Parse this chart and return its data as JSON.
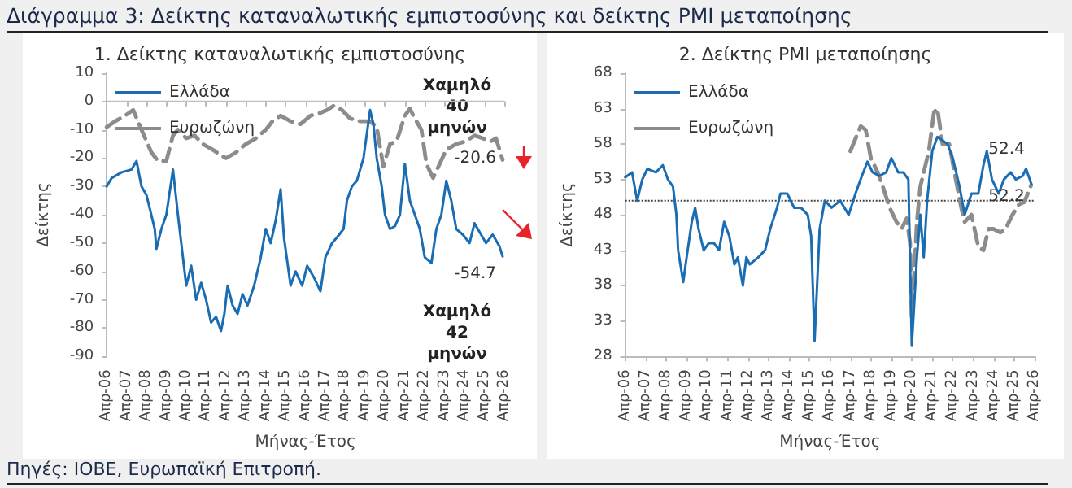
{
  "chart_data": [
    {
      "type": "line",
      "title": "1. Δείκτης καταναλωτικής εμπιστοσύνης",
      "xlabel": "Μήνας-Έτος",
      "ylabel": "Δείκτης",
      "legend": "top left",
      "marker": "none",
      "grid": false,
      "annotations": [
        "Διάγραμμα 3: Δείκτης καταναλωτικής εμπιστοσύνης και δείκτης PMI μεταποίησης",
        "Πηγές: ΙΟΒΕ, Ευρωπαϊκή Επιτροπή.",
        {
          "text": "-20.6",
          "x": "2026-03",
          "y": -20.6
        },
        {
          "text": "-54.7",
          "x": "2026-03",
          "y": -54.7
        },
        "Χαμηλό 40 μηνών",
        "Χαμηλό 42 μηνών"
      ],
      "xlim": [
        "2006-04",
        "2026-04"
      ],
      "xticks": [
        {
          "value": "2006-04",
          "label": "Απρ-06"
        },
        {
          "value": "2007-04",
          "label": "Απρ-07"
        },
        {
          "value": "2008-04",
          "label": "Απρ-08"
        },
        {
          "value": "2009-04",
          "label": "Απρ-09"
        },
        {
          "value": "2010-04",
          "label": "Απρ-10"
        },
        {
          "value": "2011-04",
          "label": "Απρ-11"
        },
        {
          "value": "2012-04",
          "label": "Απρ-12"
        },
        {
          "value": "2013-04",
          "label": "Απρ-13"
        },
        {
          "value": "2014-04",
          "label": "Απρ-14"
        },
        {
          "value": "2015-04",
          "label": "Απρ-15"
        },
        {
          "value": "2016-04",
          "label": "Απρ-16"
        },
        {
          "value": "2017-04",
          "label": "Απρ-17"
        },
        {
          "value": "2018-04",
          "label": "Απρ-18"
        },
        {
          "value": "2019-04",
          "label": "Απρ-19"
        },
        {
          "value": "2020-04",
          "label": "Απρ-20"
        },
        {
          "value": "2021-04",
          "label": "Απρ-21"
        },
        {
          "value": "2022-04",
          "label": "Απρ-22"
        },
        {
          "value": "2023-04",
          "label": "Απρ-23"
        },
        {
          "value": "2024-04",
          "label": "Απρ-24"
        },
        {
          "value": "2025-04",
          "label": "Απρ-25"
        },
        {
          "value": "2026-04",
          "label": "Απρ-26"
        }
      ],
      "ylim": [
        -90,
        10
      ],
      "yticks": [
        -90,
        -80,
        -70,
        -60,
        -50,
        -40,
        -30,
        -20,
        -10,
        0,
        10
      ],
      "ref_lines": [
        {
          "axis": "y",
          "value": 0,
          "label": null,
          "color": "#bfbfbf",
          "line_style": "solid"
        }
      ],
      "series": [
        {
          "name": "Ελλάδα",
          "color": "#1a6db3",
          "line_style": "solid",
          "x": [
            "2006-04",
            "2006-07",
            "2007-01",
            "2007-07",
            "2007-10",
            "2008-01",
            "2008-04",
            "2008-09",
            "2008-10",
            "2009-01",
            "2009-04",
            "2009-08",
            "2009-11",
            "2010-02",
            "2010-04",
            "2010-07",
            "2010-10",
            "2011-01",
            "2011-04",
            "2011-07",
            "2011-10",
            "2012-01",
            "2012-03",
            "2012-05",
            "2012-08",
            "2012-11",
            "2013-02",
            "2013-05",
            "2013-09",
            "2014-01",
            "2014-04",
            "2014-07",
            "2014-10",
            "2015-01",
            "2015-03",
            "2015-07",
            "2015-10",
            "2016-02",
            "2016-05",
            "2016-09",
            "2017-01",
            "2017-04",
            "2017-08",
            "2017-11",
            "2018-03",
            "2018-05",
            "2018-08",
            "2018-11",
            "2019-03",
            "2019-07",
            "2019-09",
            "2019-11",
            "2020-02",
            "2020-04",
            "2020-07",
            "2020-10",
            "2021-01",
            "2021-04",
            "2021-07",
            "2021-10",
            "2022-01",
            "2022-04",
            "2022-08",
            "2022-11",
            "2023-02",
            "2023-05",
            "2023-08",
            "2023-11",
            "2024-03",
            "2024-07",
            "2024-10",
            "2025-02",
            "2025-05",
            "2025-09",
            "2026-01",
            "2026-03"
          ],
          "values": [
            -30,
            -27,
            -25,
            -24,
            -21,
            -30,
            -33,
            -45,
            -52,
            -45,
            -40,
            -24,
            -40,
            -55,
            -65,
            -58,
            -70,
            -64,
            -70,
            -78,
            -76,
            -81,
            -75,
            -65,
            -72,
            -75,
            -68,
            -72,
            -65,
            -55,
            -45,
            -50,
            -42,
            -31,
            -48,
            -65,
            -60,
            -65,
            -58,
            -62,
            -67,
            -55,
            -50,
            -48,
            -45,
            -35,
            -30,
            -28,
            -20,
            -3,
            -8,
            -20,
            -30,
            -40,
            -45,
            -44,
            -40,
            -22,
            -35,
            -40,
            -45,
            -55,
            -57,
            -45,
            -40,
            -28,
            -35,
            -45,
            -47,
            -50,
            -43,
            -47,
            -50,
            -47,
            -51,
            -54.7
          ]
        },
        {
          "name": "Ευρωζώνη",
          "color": "#8c8c8c",
          "line_style": "dashed",
          "x": [
            "2006-04",
            "2006-09",
            "2007-03",
            "2007-08",
            "2008-01",
            "2008-07",
            "2008-11",
            "2009-04",
            "2009-08",
            "2009-11",
            "2010-04",
            "2010-09",
            "2011-02",
            "2011-08",
            "2012-01",
            "2012-04",
            "2012-10",
            "2013-04",
            "2013-10",
            "2014-04",
            "2014-08",
            "2015-01",
            "2015-07",
            "2016-01",
            "2016-07",
            "2017-01",
            "2017-05",
            "2017-09",
            "2018-02",
            "2018-07",
            "2019-01",
            "2019-07",
            "2019-11",
            "2020-03",
            "2020-07",
            "2020-11",
            "2021-04",
            "2021-07",
            "2021-10",
            "2022-02",
            "2022-05",
            "2022-09",
            "2023-01",
            "2023-05",
            "2023-11",
            "2024-05",
            "2024-10",
            "2025-03",
            "2025-08",
            "2025-11",
            "2026-03"
          ],
          "values": [
            -9,
            -7,
            -5,
            -3,
            -10,
            -18,
            -21,
            -21,
            -12,
            -10,
            -13,
            -12,
            -15,
            -17,
            -19,
            -20,
            -18,
            -15,
            -13,
            -10,
            -7,
            -5,
            -7,
            -8,
            -5,
            -4,
            -3,
            -1.5,
            -3,
            -6,
            -7,
            -7,
            -9,
            -23,
            -15,
            -14,
            -5,
            -2.5,
            -6,
            -10,
            -22,
            -27,
            -22,
            -17,
            -15,
            -14,
            -12,
            -13,
            -14,
            -13,
            -20.6
          ]
        }
      ]
    },
    {
      "type": "line",
      "title": "2. Δείκτης PMI μεταποίησης",
      "xlabel": "Μήνας-Έτος",
      "ylabel": "Δείκτης",
      "legend": "top left",
      "marker": "none",
      "grid": false,
      "annotations": [
        {
          "text": "52.2",
          "x": "2026-02",
          "y": 52.2
        },
        {
          "text": "52.4",
          "x": "2026-02",
          "y": 52.4
        }
      ],
      "xlim": [
        "2006-04",
        "2026-04"
      ],
      "xticks": [
        {
          "value": "2006-04",
          "label": "Απρ-06"
        },
        {
          "value": "2007-04",
          "label": "Απρ-07"
        },
        {
          "value": "2008-04",
          "label": "Απρ-08"
        },
        {
          "value": "2009-04",
          "label": "Απρ-09"
        },
        {
          "value": "2010-04",
          "label": "Απρ-10"
        },
        {
          "value": "2011-04",
          "label": "Απρ-11"
        },
        {
          "value": "2012-04",
          "label": "Απρ-12"
        },
        {
          "value": "2013-04",
          "label": "Απρ-13"
        },
        {
          "value": "2014-04",
          "label": "Απρ-14"
        },
        {
          "value": "2015-04",
          "label": "Απρ-15"
        },
        {
          "value": "2016-04",
          "label": "Απρ-16"
        },
        {
          "value": "2017-04",
          "label": "Απρ-17"
        },
        {
          "value": "2018-04",
          "label": "Απρ-18"
        },
        {
          "value": "2019-04",
          "label": "Απρ-19"
        },
        {
          "value": "2020-04",
          "label": "Απρ-20"
        },
        {
          "value": "2021-04",
          "label": "Απρ-21"
        },
        {
          "value": "2022-04",
          "label": "Απρ-22"
        },
        {
          "value": "2023-04",
          "label": "Απρ-23"
        },
        {
          "value": "2024-04",
          "label": "Απρ-24"
        },
        {
          "value": "2025-04",
          "label": "Απρ-25"
        },
        {
          "value": "2026-04",
          "label": "Απρ-26"
        }
      ],
      "ylim": [
        28,
        68
      ],
      "yticks": [
        28,
        33,
        38,
        43,
        48,
        53,
        58,
        63,
        68
      ],
      "ref_lines": [
        {
          "axis": "y",
          "value": 50,
          "label": null,
          "color": "#404040",
          "line_style": "dotted"
        }
      ],
      "series": [
        {
          "name": "Ελλάδα",
          "color": "#1a6db3",
          "line_style": "solid",
          "x": [
            "2006-04",
            "2006-08",
            "2006-11",
            "2007-02",
            "2007-05",
            "2007-10",
            "2008-02",
            "2008-05",
            "2008-08",
            "2008-10",
            "2008-11",
            "2009-02",
            "2009-04",
            "2009-07",
            "2009-09",
            "2009-11",
            "2010-02",
            "2010-05",
            "2010-08",
            "2010-11",
            "2011-02",
            "2011-05",
            "2011-08",
            "2011-10",
            "2012-01",
            "2012-03",
            "2012-05",
            "2012-10",
            "2013-02",
            "2013-05",
            "2013-09",
            "2013-11",
            "2014-03",
            "2014-07",
            "2014-11",
            "2015-03",
            "2015-05",
            "2015-07",
            "2015-10",
            "2016-01",
            "2016-05",
            "2016-10",
            "2017-03",
            "2017-07",
            "2017-10",
            "2018-02",
            "2018-05",
            "2018-09",
            "2019-01",
            "2019-04",
            "2019-08",
            "2019-11",
            "2020-02",
            "2020-04",
            "2020-07",
            "2020-09",
            "2020-11",
            "2021-01",
            "2021-04",
            "2021-07",
            "2021-10",
            "2022-01",
            "2022-04",
            "2022-08",
            "2022-11",
            "2023-03",
            "2023-07",
            "2023-10",
            "2023-12",
            "2024-03",
            "2024-07",
            "2024-10",
            "2025-02",
            "2025-05",
            "2025-09",
            "2025-11",
            "2026-02"
          ],
          "values": [
            53.3,
            54,
            50,
            53,
            54.5,
            54,
            55,
            53,
            52,
            48,
            43,
            38.5,
            42,
            47,
            49,
            46,
            43,
            44,
            44,
            43,
            47,
            45,
            41,
            42,
            38,
            42,
            41,
            42,
            43,
            46,
            49,
            51,
            51,
            49,
            49,
            48,
            45,
            30.2,
            46,
            50,
            49,
            50,
            48,
            51,
            53,
            55.5,
            54,
            53.5,
            54,
            56,
            54,
            54,
            53,
            29.5,
            42,
            48,
            42,
            50,
            57,
            59,
            58.5,
            58,
            56,
            52,
            48,
            51,
            51,
            55,
            57,
            53,
            51,
            53,
            54,
            53,
            53.5,
            54.5,
            52.4
          ]
        },
        {
          "name": "Ευρωζώνη",
          "color": "#8c8c8c",
          "line_style": "dashed",
          "x": [
            "2017-04",
            "2017-10",
            "2018-01",
            "2018-04",
            "2018-08",
            "2018-11",
            "2019-03",
            "2019-07",
            "2019-10",
            "2020-01",
            "2020-03",
            "2020-04",
            "2020-07",
            "2020-09",
            "2020-11",
            "2021-02",
            "2021-05",
            "2021-07",
            "2021-10",
            "2022-02",
            "2022-05",
            "2022-09",
            "2022-11",
            "2023-03",
            "2023-07",
            "2023-10",
            "2024-01",
            "2024-04",
            "2024-08",
            "2024-11",
            "2025-03",
            "2025-07",
            "2025-10",
            "2026-02"
          ],
          "values": [
            57,
            60.5,
            60,
            56,
            54,
            52,
            49,
            47,
            46,
            47.5,
            44,
            33.4,
            47,
            52,
            54,
            57,
            62.5,
            63,
            58,
            58,
            54,
            49,
            47,
            48,
            43.5,
            43,
            46,
            46,
            45.5,
            46,
            48,
            49.5,
            49.8,
            52.2
          ]
        }
      ]
    }
  ]
}
